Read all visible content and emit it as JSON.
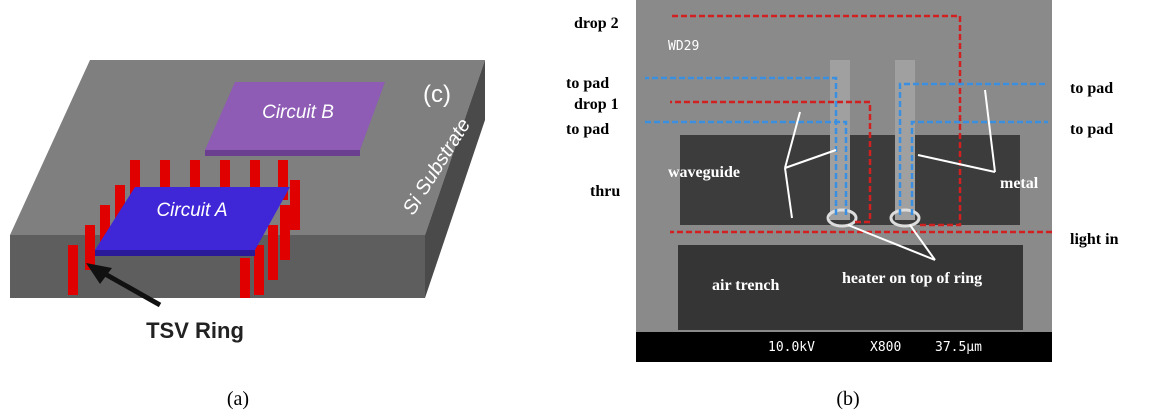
{
  "figure_a": {
    "caption": "(a)",
    "circuit_b": "Circuit B",
    "panel_tag": "(c)",
    "substrate": "Si Substrate",
    "circuit_a": "Circuit A",
    "tsv": "TSV Ring"
  },
  "figure_b": {
    "caption": "(b)",
    "chip_id": "WD29",
    "labels": {
      "drop2": "drop 2",
      "to_pad_left_1": "to pad",
      "drop1": "drop 1",
      "to_pad_left_2": "to pad",
      "thru": "thru",
      "waveguide": "waveguide",
      "to_pad_right_1": "to pad",
      "to_pad_right_2": "to pad",
      "metal": "metal",
      "light_in": "light in",
      "air_trench": "air trench",
      "heater": "heater on top of ring"
    },
    "scale_bar": {
      "voltage": "10.0kV",
      "magnification": "X800",
      "length": "37.5µm"
    }
  }
}
